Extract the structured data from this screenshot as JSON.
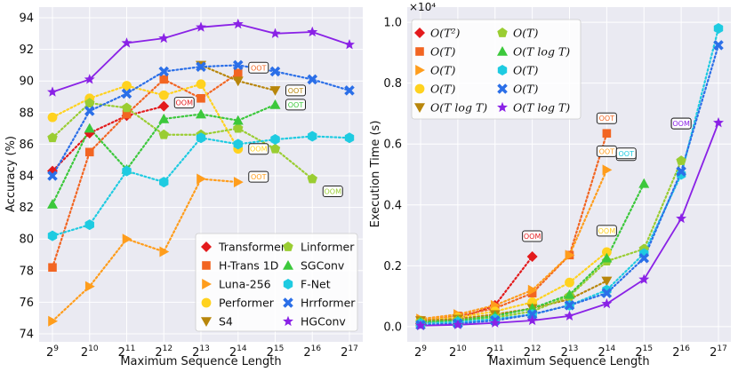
{
  "colors": {
    "panel_bg": "#eaeaf2",
    "grid": "#ffffff",
    "Transformer": "#e31a1c",
    "H-Trans 1D": "#f26522",
    "Luna-256": "#ff9d1c",
    "Performer": "#ffd21f",
    "S4": "#b8860b",
    "Linformer": "#9acd32",
    "SGConv": "#3cc83c",
    "F-Net": "#1ecbe1",
    "Hrrformer": "#2b6fe8",
    "HGConv": "#8a22e6"
  },
  "chart_data": [
    {
      "type": "line",
      "xlabel": "Maximum Sequence Length",
      "ylabel": "Accuracy (%)",
      "x_exponents": [
        9,
        10,
        11,
        12,
        13,
        14,
        15,
        16,
        17
      ],
      "x_tick_base": "2",
      "ylim": [
        74,
        94
      ],
      "yticks": [
        74,
        76,
        78,
        80,
        82,
        84,
        86,
        88,
        90,
        92,
        94
      ],
      "grid": true,
      "legend_position": "bottom-right",
      "series": [
        {
          "name": "Transformer",
          "marker": "diamond",
          "exps": [
            9,
            10,
            11,
            12
          ],
          "values": [
            84.3,
            86.7,
            87.8,
            88.4
          ],
          "note": {
            "text": "OOM",
            "exp": 12,
            "value": 88.4
          }
        },
        {
          "name": "H-Trans 1D",
          "marker": "square",
          "exps": [
            9,
            10,
            11,
            12,
            13,
            14
          ],
          "values": [
            78.2,
            85.5,
            87.9,
            90.1,
            88.9,
            90.5
          ],
          "note": {
            "text": "OOT",
            "exp": 14,
            "value": 90.5
          }
        },
        {
          "name": "Luna-256",
          "marker": "triangle-right",
          "exps": [
            9,
            10,
            11,
            12,
            13,
            14
          ],
          "values": [
            74.8,
            77.0,
            80.0,
            79.2,
            83.8,
            83.6
          ],
          "note": {
            "text": "OOT",
            "exp": 14,
            "value": 83.6
          }
        },
        {
          "name": "Performer",
          "marker": "circle",
          "exps": [
            9,
            10,
            11,
            12,
            13,
            14
          ],
          "values": [
            87.7,
            88.9,
            89.7,
            89.1,
            89.8,
            85.7
          ],
          "note": {
            "text": "OOM",
            "exp": 14,
            "value": 85.7
          }
        },
        {
          "name": "S4",
          "marker": "triangle-down",
          "exps": [
            13,
            14,
            15
          ],
          "values": [
            91.0,
            90.0,
            89.4
          ],
          "note": {
            "text": "OOT",
            "exp": 15,
            "value": 89.4
          }
        },
        {
          "name": "Linformer",
          "marker": "pentagon",
          "exps": [
            9,
            10,
            11,
            12,
            13,
            14,
            15,
            16
          ],
          "values": [
            86.4,
            88.6,
            88.3,
            86.6,
            86.6,
            87.0,
            85.7,
            83.8
          ],
          "note": {
            "text": "OOM",
            "exp": 16,
            "value": 83.8
          }
        },
        {
          "name": "SGConv",
          "marker": "triangle-up",
          "exps": [
            9,
            10,
            11,
            12,
            13,
            14,
            15
          ],
          "values": [
            82.2,
            87.0,
            84.4,
            87.6,
            87.9,
            87.5,
            88.5
          ],
          "note": {
            "text": "OOT",
            "exp": 15,
            "value": 88.5
          }
        },
        {
          "name": "F-Net",
          "marker": "hexagon",
          "exps": [
            9,
            10,
            11,
            12,
            13,
            14,
            15,
            16,
            17
          ],
          "values": [
            80.2,
            80.9,
            84.3,
            83.6,
            86.4,
            86.0,
            86.3,
            86.5,
            86.4
          ],
          "note": null
        },
        {
          "name": "Hrrformer",
          "marker": "x",
          "exps": [
            9,
            10,
            11,
            12,
            13,
            14,
            15,
            16,
            17
          ],
          "values": [
            84.0,
            88.1,
            89.2,
            90.6,
            90.9,
            91.0,
            90.6,
            90.1,
            89.4
          ],
          "note": null
        },
        {
          "name": "HGConv",
          "marker": "star",
          "exps": [
            9,
            10,
            11,
            12,
            13,
            14,
            15,
            16,
            17
          ],
          "values": [
            89.3,
            90.1,
            92.4,
            92.7,
            93.4,
            93.6,
            93.0,
            93.1,
            92.3
          ],
          "note": null
        }
      ]
    },
    {
      "type": "line",
      "xlabel": "Maximum Sequence Length",
      "ylabel": "Execution Time (s)",
      "y_scale_label": "×10⁴",
      "x_exponents": [
        9,
        10,
        11,
        12,
        13,
        14,
        15,
        16,
        17
      ],
      "x_tick_base": "2",
      "ylim": [
        -0.05,
        1.05
      ],
      "yticks": [
        0.0,
        0.2,
        0.4,
        0.6,
        0.8,
        1.0
      ],
      "ytick_labels": [
        "0.0",
        "0.2",
        "0.4",
        "0.6",
        "0.8",
        "1.0"
      ],
      "grid": true,
      "legend_position": "top-left",
      "legend_complexities": [
        "O(T²)",
        "O(T)",
        "O(T)",
        "O(T)",
        "O(T log T)",
        "O(T)",
        "O(T log T)",
        "O(T)",
        "O(T)",
        "O(T log T)"
      ],
      "series": [
        {
          "name": "Transformer",
          "marker": "diamond",
          "exps": [
            9,
            10,
            11,
            12
          ],
          "values": [
            0.01,
            0.025,
            0.07,
            0.23
          ],
          "note": {
            "text": "OOM",
            "exp": 12,
            "value": 0.23
          }
        },
        {
          "name": "H-Trans 1D",
          "marker": "square",
          "exps": [
            9,
            10,
            11,
            12,
            13,
            14
          ],
          "values": [
            0.02,
            0.035,
            0.06,
            0.11,
            0.235,
            0.635
          ],
          "note": {
            "text": "OOT",
            "exp": 14,
            "value": 0.635
          }
        },
        {
          "name": "Luna-256",
          "marker": "triangle-right",
          "exps": [
            9,
            10,
            11,
            12,
            13,
            14
          ],
          "values": [
            0.025,
            0.04,
            0.07,
            0.12,
            0.235,
            0.515
          ],
          "note": {
            "text": "OOT",
            "exp": 14,
            "value": 0.515
          }
        },
        {
          "name": "Performer",
          "marker": "circle",
          "exps": [
            9,
            10,
            11,
            12,
            13,
            14
          ],
          "values": [
            0.02,
            0.03,
            0.05,
            0.08,
            0.145,
            0.245
          ],
          "note": {
            "text": "OOM",
            "exp": 14,
            "value": 0.245
          }
        },
        {
          "name": "S4",
          "marker": "triangle-down",
          "exps": [
            9,
            10,
            11,
            12,
            13,
            14
          ],
          "values": [
            0.02,
            0.025,
            0.04,
            0.06,
            0.09,
            0.15
          ],
          "note": null
        },
        {
          "name": "Linformer",
          "marker": "pentagon",
          "exps": [
            9,
            10,
            11,
            12,
            13,
            14,
            15,
            16
          ],
          "values": [
            0.015,
            0.02,
            0.03,
            0.05,
            0.1,
            0.215,
            0.255,
            0.545
          ],
          "note": {
            "text": "OOM",
            "exp": 16,
            "value": 0.545
          }
        },
        {
          "name": "SGConv",
          "marker": "triangle-up",
          "exps": [
            9,
            10,
            11,
            12,
            13,
            14,
            15
          ],
          "values": [
            0.015,
            0.02,
            0.035,
            0.06,
            0.105,
            0.225,
            0.47
          ],
          "note": {
            "text": "OOT",
            "exp": 15,
            "value": 0.47
          }
        },
        {
          "name": "F-Net",
          "marker": "hexagon",
          "exps": [
            9,
            10,
            11,
            12,
            13,
            14,
            15,
            16,
            17
          ],
          "values": [
            0.01,
            0.015,
            0.025,
            0.04,
            0.07,
            0.12,
            0.24,
            0.5,
            0.98
          ],
          "note": {
            "text": "OOT",
            "exp": 15,
            "value": 0.47
          }
        },
        {
          "name": "Hrrformer",
          "marker": "x",
          "exps": [
            9,
            10,
            11,
            12,
            13,
            14,
            15,
            16,
            17
          ],
          "values": [
            0.005,
            0.01,
            0.02,
            0.04,
            0.07,
            0.11,
            0.225,
            0.51,
            0.925
          ],
          "note": null
        },
        {
          "name": "HGConv",
          "marker": "star",
          "exps": [
            9,
            10,
            11,
            12,
            13,
            14,
            15,
            16,
            17
          ],
          "values": [
            0.003,
            0.006,
            0.012,
            0.02,
            0.035,
            0.075,
            0.155,
            0.355,
            0.67
          ],
          "note": {
            "text": "OOM",
            "exp": 16,
            "value": 0.545
          }
        }
      ]
    }
  ]
}
